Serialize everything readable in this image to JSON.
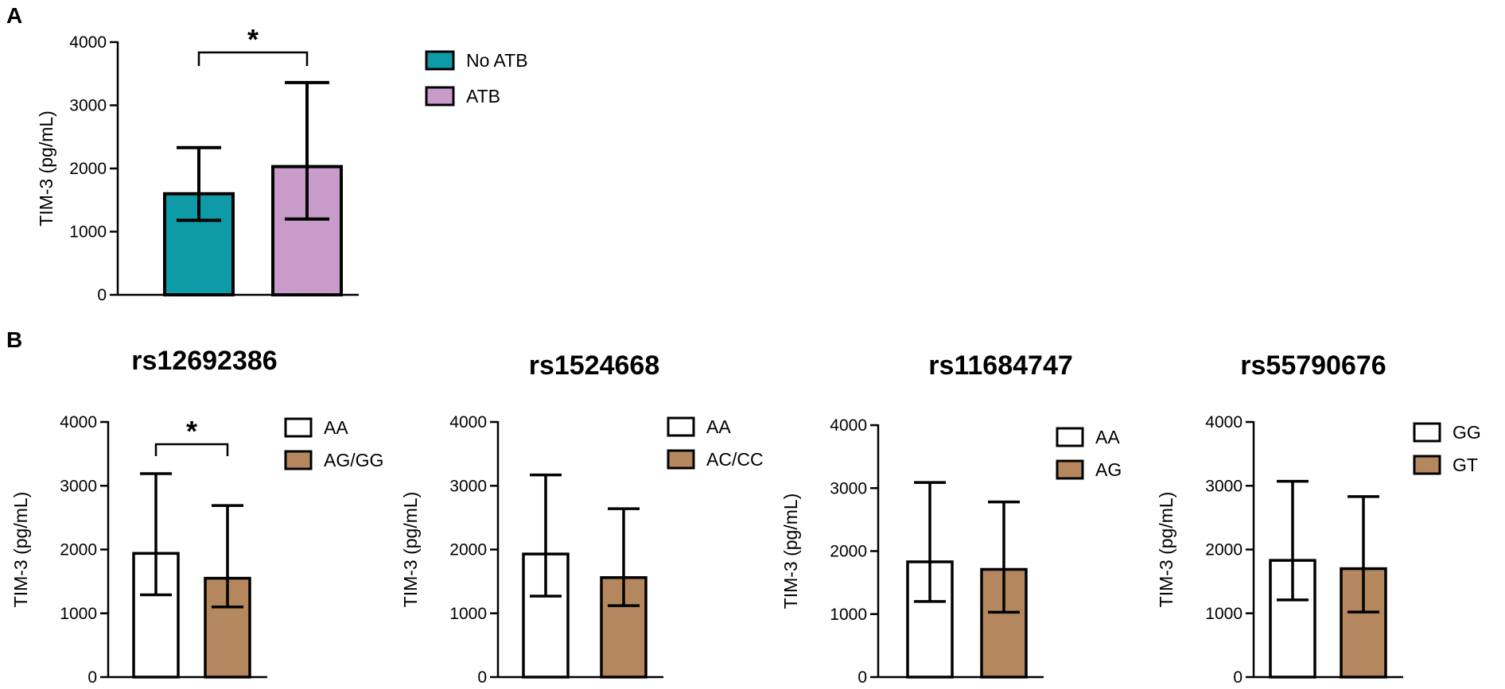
{
  "panels": {
    "a_label": "A",
    "b_label": "B"
  },
  "styles": {
    "teal": "#0E9AA7",
    "lilac": "#C89BCB",
    "white": "#FFFFFF",
    "tan": "#B5875E",
    "stroke": "#000000"
  },
  "chart_data": [
    {
      "type": "bar",
      "title": "",
      "xlabel": "",
      "ylabel": "TIM-3 (pg/mL)",
      "ylim": [
        0,
        4000
      ],
      "yticks": [
        "0",
        "1000",
        "2000",
        "3000",
        "4000"
      ],
      "series": [
        {
          "name": "No ATB",
          "value": 1600,
          "err_low": 1180,
          "err_high": 2330,
          "color": "#0E9AA7"
        },
        {
          "name": "ATB",
          "value": 2030,
          "err_low": 1200,
          "err_high": 3360,
          "color": "#C89BCB"
        }
      ],
      "significance": "*",
      "legend_position": "right"
    },
    {
      "type": "bar",
      "title": "rs12692386",
      "xlabel": "",
      "ylabel": "TIM-3 (pg/mL)",
      "ylim": [
        0,
        4000
      ],
      "yticks": [
        "0",
        "1000",
        "2000",
        "3000",
        "4000"
      ],
      "series": [
        {
          "name": "AA",
          "value": 1940,
          "err_low": 1290,
          "err_high": 3190,
          "color": "#FFFFFF"
        },
        {
          "name": "AG/GG",
          "value": 1550,
          "err_low": 1100,
          "err_high": 2690,
          "color": "#B5875E"
        }
      ],
      "significance": "*",
      "legend_position": "right"
    },
    {
      "type": "bar",
      "title": "rs1524668",
      "xlabel": "",
      "ylabel": "TIM-3 (pg/mL)",
      "ylim": [
        0,
        4000
      ],
      "yticks": [
        "0",
        "1000",
        "2000",
        "3000",
        "4000"
      ],
      "series": [
        {
          "name": "AA",
          "value": 1930,
          "err_low": 1270,
          "err_high": 3170,
          "color": "#FFFFFF"
        },
        {
          "name": "AC/CC",
          "value": 1560,
          "err_low": 1120,
          "err_high": 2640,
          "color": "#B5875E"
        }
      ],
      "significance": "",
      "legend_position": "right"
    },
    {
      "type": "bar",
      "title": "rs11684747",
      "xlabel": "",
      "ylabel": "TIM-3 (pg/mL)",
      "ylim": [
        0,
        4000
      ],
      "yticks": [
        "0",
        "1000",
        "2000",
        "3000",
        "4000"
      ],
      "series": [
        {
          "name": "AA",
          "value": 1830,
          "err_low": 1200,
          "err_high": 3090,
          "color": "#FFFFFF"
        },
        {
          "name": "AG",
          "value": 1710,
          "err_low": 1030,
          "err_high": 2780,
          "color": "#B5875E"
        }
      ],
      "significance": "",
      "legend_position": "right"
    },
    {
      "type": "bar",
      "title": "rs55790676",
      "xlabel": "",
      "ylabel": "TIM-3 (pg/mL)",
      "ylim": [
        0,
        4000
      ],
      "yticks": [
        "0",
        "1000",
        "2000",
        "3000",
        "4000"
      ],
      "series": [
        {
          "name": "GG",
          "value": 1830,
          "err_low": 1210,
          "err_high": 3070,
          "color": "#FFFFFF"
        },
        {
          "name": "GT",
          "value": 1700,
          "err_low": 1020,
          "err_high": 2830,
          "color": "#B5875E"
        }
      ],
      "significance": "",
      "legend_position": "right"
    }
  ]
}
